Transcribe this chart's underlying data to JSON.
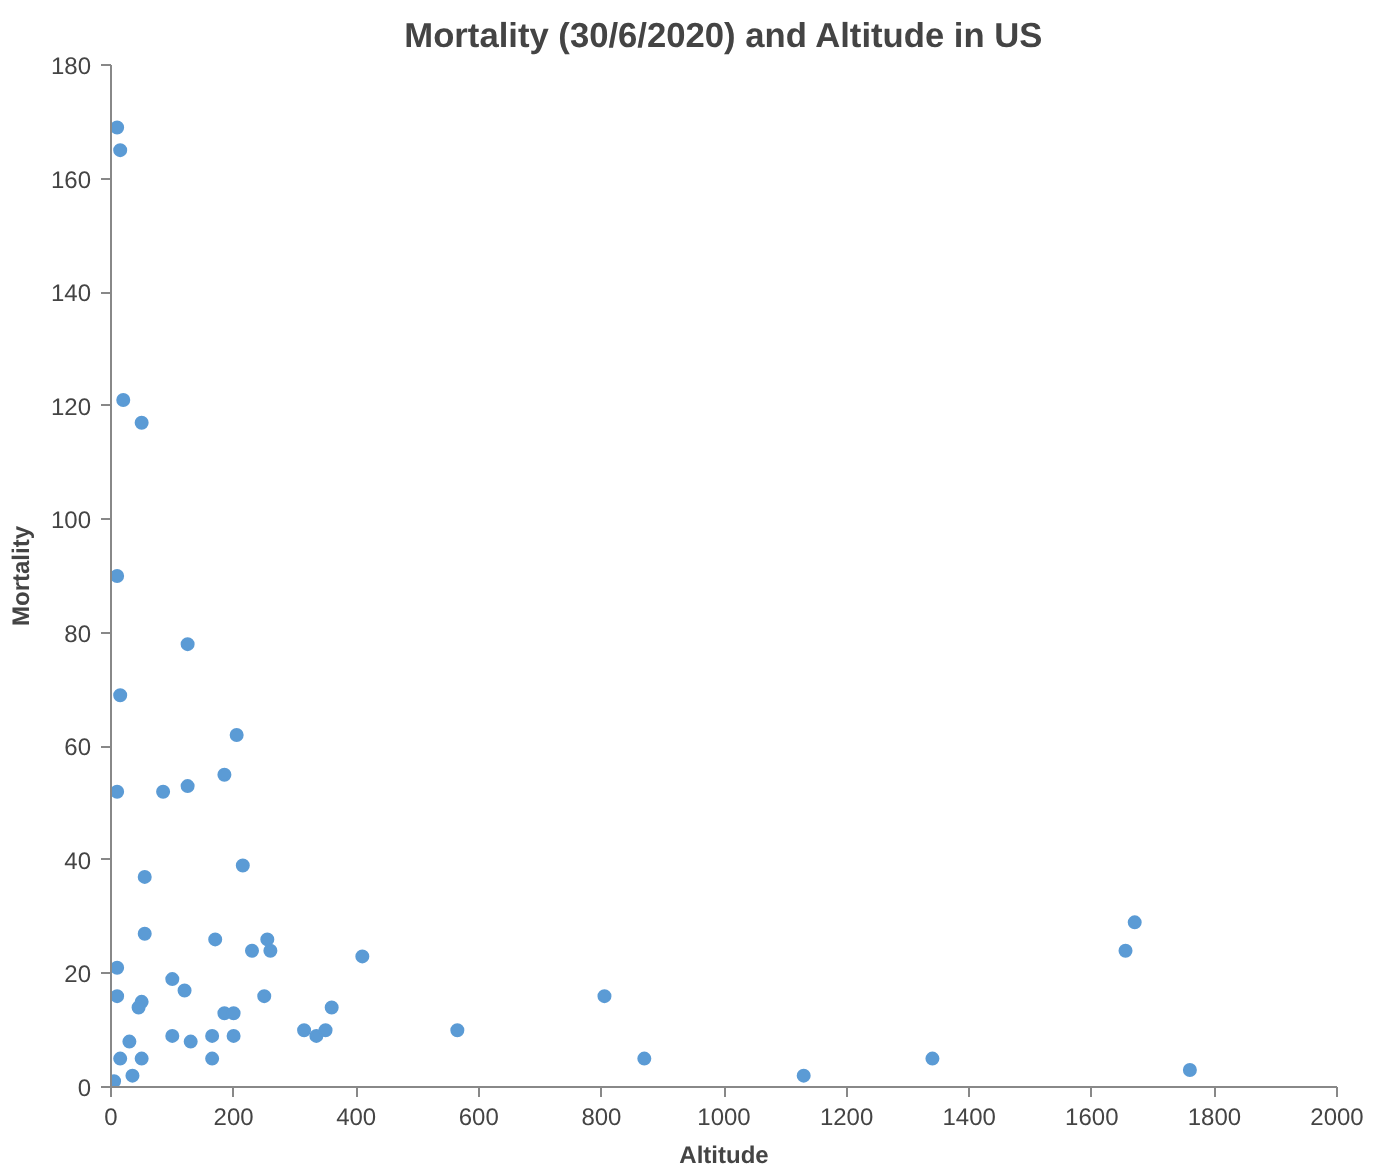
{
  "chart_data": {
    "type": "scatter",
    "title": "Mortality (30/6/2020) and Altitude in US",
    "xlabel": "Altitude",
    "ylabel": "Mortality",
    "x": [
      10,
      15,
      20,
      50,
      10,
      15,
      10,
      85,
      125,
      125,
      185,
      205,
      215,
      55,
      55,
      10,
      10,
      50,
      45,
      100,
      120,
      170,
      255,
      260,
      230,
      250,
      185,
      200,
      100,
      165,
      200,
      130,
      165,
      30,
      15,
      50,
      35,
      5,
      315,
      335,
      350,
      360,
      410,
      565,
      805,
      870,
      1130,
      1340,
      1655,
      1670,
      1760
    ],
    "series": [
      {
        "color": "#5b9bd5",
        "values": [
          169,
          165,
          121,
          117,
          90,
          69,
          52,
          52,
          78,
          53,
          55,
          62,
          39,
          37,
          27,
          21,
          16,
          15,
          14,
          19,
          17,
          26,
          26,
          24,
          24,
          16,
          13,
          13,
          9,
          9,
          9,
          8,
          5,
          8,
          5,
          5,
          2,
          1,
          10,
          9,
          10,
          14,
          23,
          10,
          16,
          5,
          2,
          5,
          24,
          29,
          3
        ]
      }
    ],
    "xlim": [
      0,
      2000
    ],
    "xticks": [
      0,
      200,
      400,
      600,
      800,
      1000,
      1200,
      1400,
      1600,
      1800,
      2000
    ],
    "ylim": [
      0,
      180
    ],
    "yticks": [
      0,
      20,
      40,
      60,
      80,
      100,
      120,
      140,
      160,
      180
    ],
    "grid": false,
    "marker": "circle"
  }
}
